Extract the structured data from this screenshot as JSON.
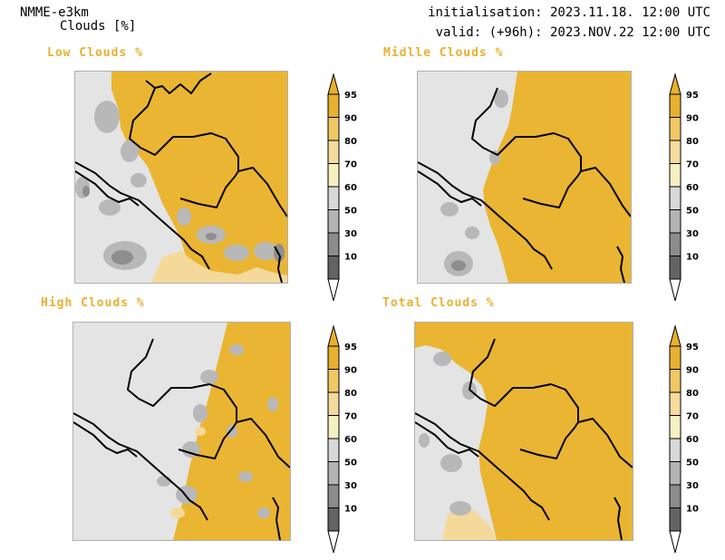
{
  "header": {
    "model": "NMME-e3km",
    "parameter": "Clouds [%]",
    "init": "initialisation: 2023.11.18. 12:00 UTC",
    "valid": "valid: (+96h): 2023.NOV.22 12:00 UTC"
  },
  "panels": [
    {
      "id": "low",
      "title": "Low Clouds %"
    },
    {
      "id": "mid",
      "title": "Midlle Clouds %"
    },
    {
      "id": "high",
      "title": "High Clouds %"
    },
    {
      "id": "total",
      "title": "Total Clouds %"
    }
  ],
  "colorbar": {
    "levels": [
      "95",
      "90",
      "80",
      "70",
      "60",
      "50",
      "30",
      "10"
    ],
    "colors": {
      "top_arrow": "#e8b030",
      "95": "#e8b030",
      "90": "#f0c864",
      "80": "#f5dc9c",
      "70": "#f5f0c0",
      "60": "#d8d8d8",
      "50": "#b4b4b4",
      "30": "#8c8c8c",
      "10": "#646464",
      "bottom_arrow": "#ffffff"
    }
  },
  "map_colors": {
    "overcast": "#eab532",
    "clear": "#e4e4e4",
    "broken": "#f4d99a",
    "scattered": "#b8b8b8",
    "few": "#8e8e8e",
    "border": "#000000"
  }
}
